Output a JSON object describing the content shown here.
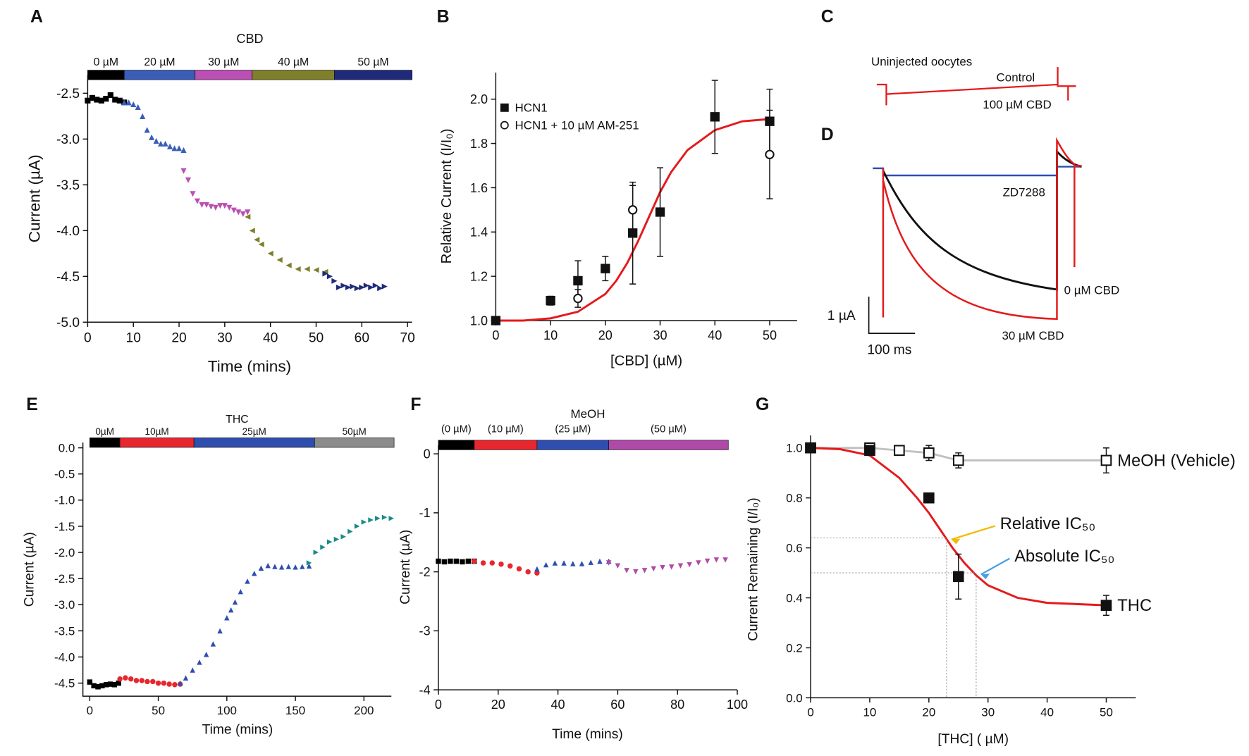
{
  "chart_data": [
    {
      "type": "scatter",
      "panel": "A",
      "bar_title": "CBD",
      "x_label": "Time (mins)",
      "y_label": "Current  (µA)",
      "xlim": [
        0,
        71
      ],
      "ylim": [
        -5.0,
        -2.3
      ],
      "xticks": [
        0,
        10,
        20,
        30,
        40,
        50,
        60,
        70
      ],
      "yticks": [
        {
          "value": -5.0,
          "label": "-5.0"
        },
        -4.5,
        {
          "value": -4.0,
          "label": "-4.0"
        },
        -3.5,
        {
          "value": -3.0,
          "label": "-3.0"
        },
        -2.5
      ],
      "bar_segments": [
        {
          "label": "0 µM",
          "start": 0,
          "end": 8,
          "color": "#000000"
        },
        {
          "label": "20 µM",
          "start": 8,
          "end": 23.5,
          "color": "#3a5eb8"
        },
        {
          "label": "30 µM",
          "start": 23.5,
          "end": 36,
          "color": "#bb4fb4"
        },
        {
          "label": "40 µM",
          "start": 36,
          "end": 54,
          "color": "#7f7f2c"
        },
        {
          "label": "50 µM",
          "start": 54,
          "end": 71,
          "color": "#1f2b7a"
        }
      ],
      "series": [
        {
          "marker": "square",
          "color": "#000000",
          "x": [
            0,
            1,
            2,
            3,
            4,
            5,
            6,
            7,
            8
          ],
          "y": [
            -2.58,
            -2.55,
            -2.57,
            -2.58,
            -2.56,
            -2.52,
            -2.57,
            -2.58,
            -2.6
          ]
        },
        {
          "marker": "triangle-up",
          "color": "#3a5eb8",
          "x": [
            8,
            9,
            10,
            11,
            12,
            13,
            14,
            15,
            16,
            17,
            18,
            19,
            20,
            21
          ],
          "y": [
            -2.6,
            -2.6,
            -2.62,
            -2.65,
            -2.75,
            -2.9,
            -2.98,
            -3.02,
            -3.05,
            -3.05,
            -3.08,
            -3.1,
            -3.1,
            -3.12
          ]
        },
        {
          "marker": "triangle-down",
          "color": "#bb4fb4",
          "x": [
            21,
            22,
            23,
            24,
            25,
            26,
            27,
            28,
            29,
            30,
            31,
            32,
            33,
            34,
            35
          ],
          "y": [
            -3.35,
            -3.45,
            -3.6,
            -3.68,
            -3.72,
            -3.72,
            -3.74,
            -3.75,
            -3.73,
            -3.73,
            -3.75,
            -3.78,
            -3.8,
            -3.82,
            -3.8
          ]
        },
        {
          "marker": "triangle-left",
          "color": "#7f7f2c",
          "x": [
            35,
            36,
            37,
            38,
            40,
            42,
            44,
            46,
            48,
            50,
            52
          ],
          "y": [
            -3.85,
            -4.0,
            -4.1,
            -4.15,
            -4.25,
            -4.32,
            -4.38,
            -4.42,
            -4.42,
            -4.43,
            -4.45
          ]
        },
        {
          "marker": "triangle-right",
          "color": "#1f2b7a",
          "x": [
            52,
            53,
            54,
            55,
            56,
            57,
            58,
            59,
            60,
            61,
            62,
            63,
            64,
            65
          ],
          "y": [
            -4.47,
            -4.5,
            -4.55,
            -4.62,
            -4.6,
            -4.62,
            -4.61,
            -4.63,
            -4.62,
            -4.6,
            -4.62,
            -4.6,
            -4.63,
            -4.61
          ]
        }
      ]
    },
    {
      "type": "errorbar",
      "panel": "B",
      "x_label": "[CBD] (µM)",
      "y_label": "Relative Current (I/I₀)",
      "legend": "upper left",
      "xlim": [
        0,
        55
      ],
      "ylim": [
        1.0,
        2.12
      ],
      "xticks": [
        0,
        10,
        20,
        30,
        40,
        50
      ],
      "yticks": [
        {
          "value": 1.0,
          "label": "1.0"
        },
        1.2,
        1.4,
        1.6,
        1.8,
        {
          "value": 2.0,
          "label": "2.0"
        }
      ],
      "series": [
        {
          "name": "HCN1",
          "marker": "square",
          "filled": true,
          "color": "#111111",
          "x": [
            0,
            10,
            15,
            20,
            25,
            30,
            40,
            50
          ],
          "y": [
            1.0,
            1.09,
            1.18,
            1.235,
            1.395,
            1.49,
            1.92,
            1.9
          ],
          "err": [
            0,
            0.02,
            0.09,
            0.055,
            0.23,
            0.2,
            0.165,
            0.145
          ]
        },
        {
          "name": "HCN1 + 10 µM AM-251",
          "marker": "circle",
          "filled": false,
          "color": "#111111",
          "x": [
            15,
            25,
            50
          ],
          "y": [
            1.1,
            1.5,
            1.75
          ],
          "err": [
            0.04,
            0.11,
            0.2
          ]
        }
      ],
      "fit": {
        "color": "#e41a1c",
        "x": [
          0,
          5,
          10,
          15,
          20,
          22,
          24,
          26,
          28,
          30,
          32,
          35,
          40,
          45,
          50
        ],
        "y": [
          1.0,
          1.0,
          1.01,
          1.04,
          1.12,
          1.18,
          1.26,
          1.36,
          1.47,
          1.58,
          1.67,
          1.77,
          1.86,
          1.9,
          1.91
        ]
      }
    },
    {
      "type": "trace",
      "panel": "C",
      "labels": [
        "Uninjected oocytes",
        "Control",
        "100 µM CBD"
      ]
    },
    {
      "type": "trace",
      "panel": "D",
      "labels": [
        "ZD7288",
        "0 µM CBD",
        "30 µM CBD"
      ],
      "scale_bar": [
        "1 µA",
        "100 ms"
      ]
    },
    {
      "type": "scatter",
      "panel": "E",
      "bar_title": "THC",
      "x_label": "Time (mins)",
      "y_label": "Current (µA)",
      "xlim": [
        -5,
        220
      ],
      "ylim": [
        -4.75,
        0.1
      ],
      "xticks": [
        0,
        50,
        100,
        150,
        200
      ],
      "yticks": [
        {
          "value": 0.0,
          "label": "0.0"
        },
        -0.5,
        {
          "value": -1.0,
          "label": "-1.0"
        },
        -1.5,
        {
          "value": -2.0,
          "label": "-2.0"
        },
        -2.5,
        {
          "value": -3.0,
          "label": "-3.0"
        },
        -3.5,
        {
          "value": -4.0,
          "label": "-4.0"
        },
        -4.5
      ],
      "bar_segments": [
        {
          "label": "0µM",
          "start": 0,
          "end": 22,
          "color": "#000000"
        },
        {
          "label": "10µM",
          "start": 22,
          "end": 76,
          "color": "#e8262d"
        },
        {
          "label": "25µM",
          "start": 76,
          "end": 164,
          "color": "#2e4fb0"
        },
        {
          "label": "50µM",
          "start": 164,
          "end": 222,
          "color": "#8c8c8c"
        }
      ],
      "series": [
        {
          "marker": "square",
          "color": "#000000",
          "x": [
            0,
            3,
            6,
            9,
            12,
            15,
            18,
            21
          ],
          "y": [
            -4.48,
            -4.55,
            -4.57,
            -4.55,
            -4.53,
            -4.52,
            -4.53,
            -4.5
          ]
        },
        {
          "marker": "circle",
          "color": "#e8262d",
          "x": [
            22,
            26,
            30,
            34,
            38,
            42,
            46,
            50,
            54,
            58,
            62,
            66
          ],
          "y": [
            -4.42,
            -4.4,
            -4.42,
            -4.45,
            -4.45,
            -4.47,
            -4.47,
            -4.5,
            -4.5,
            -4.52,
            -4.53,
            -4.52
          ]
        },
        {
          "marker": "triangle-up",
          "color": "#2e4fb0",
          "x": [
            66,
            70,
            75,
            80,
            85,
            90,
            95,
            100,
            103,
            106,
            110,
            115,
            120,
            125,
            130,
            135,
            140,
            145,
            150,
            155,
            160
          ],
          "y": [
            -4.5,
            -4.4,
            -4.25,
            -4.1,
            -3.95,
            -3.75,
            -3.5,
            -3.25,
            -3.1,
            -2.95,
            -2.75,
            -2.55,
            -2.4,
            -2.3,
            -2.25,
            -2.27,
            -2.28,
            -2.27,
            -2.28,
            -2.27,
            -2.26
          ]
        },
        {
          "marker": "triangle-right",
          "color": "#178c88",
          "x": [
            160,
            165,
            170,
            175,
            180,
            185,
            190,
            195,
            200,
            205,
            210,
            215,
            220
          ],
          "y": [
            -2.2,
            -2.0,
            -1.9,
            -1.8,
            -1.75,
            -1.7,
            -1.6,
            -1.5,
            -1.42,
            -1.38,
            -1.35,
            -1.33,
            -1.35
          ]
        }
      ]
    },
    {
      "type": "scatter",
      "panel": "F",
      "bar_title": "MeOH",
      "x_label": "Time (mins)",
      "y_label": "Current (µA)",
      "xlim": [
        0,
        100
      ],
      "ylim": [
        -4,
        0.15
      ],
      "xticks": [
        0,
        20,
        40,
        60,
        80,
        100
      ],
      "yticks": [
        0,
        -1,
        -2,
        -3,
        -4
      ],
      "bar_segments": [
        {
          "label": "(0 µM)",
          "start": 0,
          "end": 12,
          "color": "#000000"
        },
        {
          "label": "(10 µM)",
          "start": 12,
          "end": 33,
          "color": "#e8262d"
        },
        {
          "label": "(25 µM)",
          "start": 33,
          "end": 57,
          "color": "#2e4fb0"
        },
        {
          "label": "(50 µM)",
          "start": 57,
          "end": 97,
          "color": "#b04aa8"
        }
      ],
      "series": [
        {
          "marker": "square",
          "color": "#000000",
          "x": [
            0,
            2,
            4,
            6,
            8,
            10,
            12
          ],
          "y": [
            -1.82,
            -1.83,
            -1.82,
            -1.82,
            -1.83,
            -1.82,
            -1.82
          ]
        },
        {
          "marker": "circle",
          "color": "#e8262d",
          "x": [
            12,
            15,
            18,
            21,
            24,
            27,
            30,
            33
          ],
          "y": [
            -1.82,
            -1.85,
            -1.85,
            -1.87,
            -1.9,
            -1.95,
            -2.0,
            -2.02
          ]
        },
        {
          "marker": "triangle-up",
          "color": "#2e4fb0",
          "x": [
            33,
            36,
            39,
            42,
            45,
            48,
            51,
            54,
            57
          ],
          "y": [
            -1.95,
            -1.88,
            -1.85,
            -1.85,
            -1.86,
            -1.86,
            -1.84,
            -1.82,
            -1.82
          ]
        },
        {
          "marker": "triangle-down",
          "color": "#b04aa8",
          "x": [
            57,
            60,
            63,
            66,
            69,
            72,
            75,
            78,
            81,
            84,
            87,
            90,
            93,
            96
          ],
          "y": [
            -1.85,
            -1.9,
            -1.98,
            -2.0,
            -1.98,
            -1.95,
            -1.93,
            -1.92,
            -1.9,
            -1.88,
            -1.85,
            -1.82,
            -1.8,
            -1.8
          ]
        }
      ]
    },
    {
      "type": "errorbar",
      "panel": "G",
      "x_label": "[THC] ( µM)",
      "y_label": "Current Remaining (I/I₀)",
      "legend": "series-end",
      "xlim": [
        0,
        55
      ],
      "ylim": [
        0,
        1.05
      ],
      "xticks": [
        0,
        10,
        20,
        30,
        40,
        50
      ],
      "yticks": [
        {
          "value": 0.0,
          "label": "0.0"
        },
        0.2,
        0.4,
        0.6,
        0.8,
        {
          "value": 1.0,
          "label": "1.0"
        }
      ],
      "series": [
        {
          "name": "MeOH (Vehicle)",
          "marker": "square",
          "filled": false,
          "color": "#111111",
          "line_color": "#c0c0c0",
          "x": [
            0,
            10,
            15,
            20,
            25,
            50
          ],
          "y": [
            1.0,
            1.0,
            0.99,
            0.98,
            0.95,
            0.95
          ],
          "err": [
            0,
            0.01,
            0.01,
            0.03,
            0.03,
            0.05
          ]
        },
        {
          "name": "THC",
          "marker": "square",
          "filled": true,
          "color": "#111111",
          "x": [
            0,
            10,
            20,
            25,
            50
          ],
          "y": [
            1.0,
            0.99,
            0.8,
            0.485,
            0.37
          ],
          "err": [
            0,
            0,
            0,
            0.09,
            0.04
          ]
        }
      ],
      "fit": {
        "color": "#e41a1c",
        "x": [
          0,
          5,
          10,
          15,
          18,
          20,
          22,
          24,
          26,
          28,
          30,
          35,
          40,
          50
        ],
        "y": [
          1.0,
          0.995,
          0.97,
          0.88,
          0.8,
          0.74,
          0.67,
          0.6,
          0.54,
          0.49,
          0.45,
          0.4,
          0.38,
          0.37
        ]
      },
      "ic50_lines": [
        {
          "x": 23,
          "y": 0.64
        },
        {
          "x": 28,
          "y": 0.5
        }
      ],
      "annotations": [
        {
          "text": "Relative IC₅₀",
          "color": "#f5b800"
        },
        {
          "text": "Absolute IC₅₀",
          "color": "#4a9fe0"
        }
      ]
    }
  ]
}
